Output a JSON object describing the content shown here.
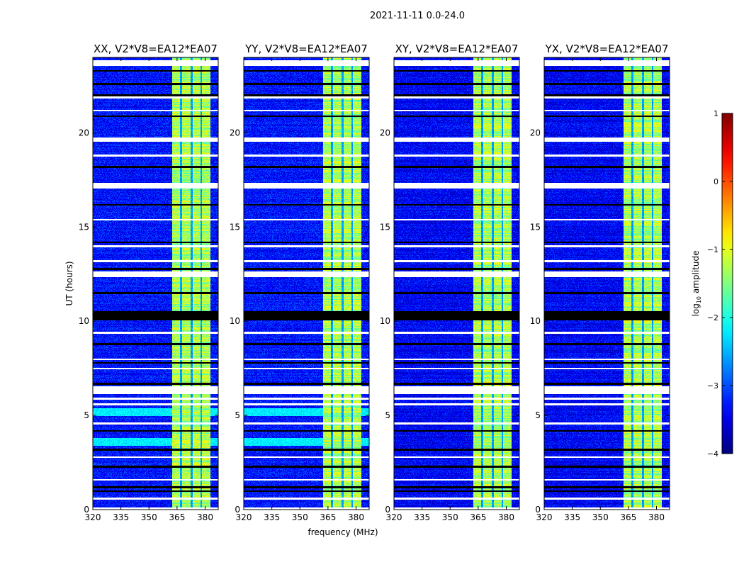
{
  "chart_data": {
    "type": "heatmap",
    "title": "2021-11-11 0.0-24.0",
    "xlabel": "frequency (MHz)",
    "ylabel": "UT (hours)",
    "xlim": [
      320,
      387
    ],
    "ylim": [
      0,
      24
    ],
    "xticks": [
      "320",
      "335",
      "350",
      "365",
      "380"
    ],
    "xtick_values": [
      320,
      335,
      350,
      365,
      380
    ],
    "yticks": [
      "0",
      "5",
      "10",
      "15",
      "20"
    ],
    "ytick_values": [
      0,
      5,
      10,
      15,
      20
    ],
    "panels": [
      {
        "title": "XX, V2*V8=EA12*EA07",
        "background_level": -3.3,
        "cyan_hours": [
          [
            3.4,
            3.8
          ],
          [
            5.0,
            5.4
          ]
        ]
      },
      {
        "title": "YY, V2*V8=EA12*EA07",
        "background_level": -3.3,
        "cyan_hours": [
          [
            3.4,
            3.8
          ],
          [
            5.0,
            5.4
          ]
        ]
      },
      {
        "title": "XY, V2*V8=EA12*EA07",
        "background_level": -3.4,
        "cyan_hours": []
      },
      {
        "title": "YX, V2*V8=EA12*EA07",
        "background_level": -3.4,
        "cyan_hours": []
      }
    ],
    "rfi_band_mhz": [
      362.3,
      382.6
    ],
    "rfi_band_level": -1.3,
    "rfi_gaps_mhz": [
      367,
      372.5,
      377.7
    ],
    "flagged_white_hours": [
      [
        23.55,
        23.85
      ],
      [
        21.85,
        21.95
      ],
      [
        21.15,
        21.25
      ],
      [
        19.55,
        19.78
      ],
      [
        18.75,
        18.85
      ],
      [
        17.05,
        17.35
      ],
      [
        15.35,
        15.45
      ],
      [
        13.95,
        14.05
      ],
      [
        13.15,
        13.25
      ],
      [
        12.35,
        12.65
      ],
      [
        9.35,
        9.45
      ],
      [
        7.95,
        8.05
      ],
      [
        7.45,
        7.55
      ],
      [
        6.15,
        6.55
      ],
      [
        5.85,
        5.95
      ],
      [
        5.55,
        5.65
      ],
      [
        4.55,
        4.65
      ],
      [
        2.75,
        2.85
      ],
      [
        1.55,
        1.65
      ],
      [
        0.55,
        0.65
      ],
      [
        0.0,
        0.12
      ]
    ],
    "flagged_black_hours": [
      [
        23.25,
        23.35
      ],
      [
        22.55,
        22.65
      ],
      [
        21.95,
        22.05
      ],
      [
        20.85,
        20.95
      ],
      [
        18.15,
        18.25
      ],
      [
        16.15,
        16.25
      ],
      [
        14.15,
        14.25
      ],
      [
        12.75,
        12.85
      ],
      [
        11.45,
        11.55
      ],
      [
        10.05,
        10.55
      ],
      [
        8.75,
        8.85
      ],
      [
        7.75,
        7.85
      ],
      [
        6.65,
        6.75
      ],
      [
        4.15,
        4.25
      ],
      [
        3.15,
        3.25
      ],
      [
        2.25,
        2.35
      ],
      [
        1.15,
        1.25
      ],
      [
        0.95,
        1.05
      ]
    ],
    "colorbar": {
      "label": "log10 amplitude",
      "label_main": "log",
      "label_sub": "10",
      "label_rest": " amplitude",
      "range": [
        -4,
        1
      ],
      "ticks": [
        "1",
        "0",
        "−1",
        "−2",
        "−3",
        "−4"
      ],
      "tick_values": [
        1,
        0,
        -1,
        -2,
        -3,
        -4
      ],
      "colormap": "jet"
    }
  }
}
